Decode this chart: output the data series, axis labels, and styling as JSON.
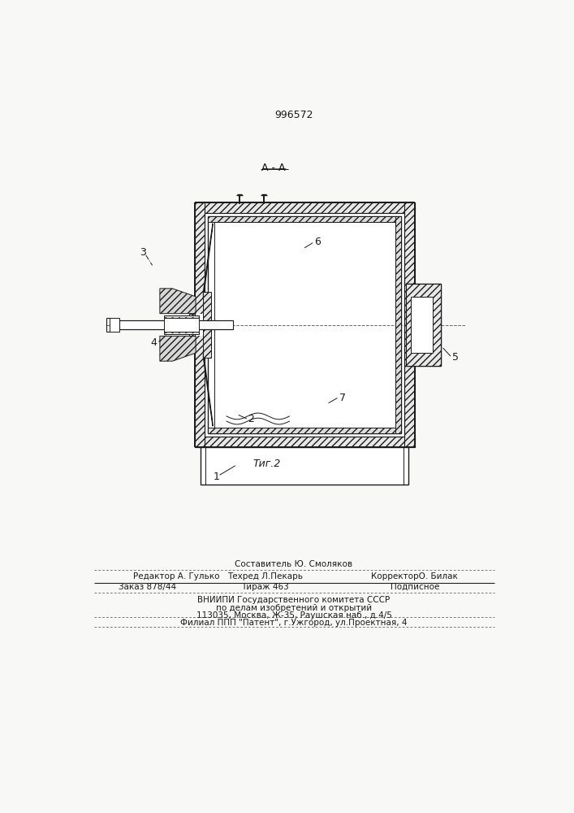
{
  "patent_number": "996572",
  "fig_label": "Τиг.2",
  "footer_sestavitel": "Составитель Ю. Смоляков",
  "footer_redaktor": "Редактор А. Гулько",
  "footer_tehred": "Техред Л.Пекарь",
  "footer_korrektor": "КорректорО. Билак",
  "footer_zakaz": "Заказ 878/44",
  "footer_tirazh": "Тираж 463",
  "footer_podpisnoe": "Подписное",
  "footer_vniip1": "ВНИИПИ Государственного комитета СССР",
  "footer_vniip2": "по делам изобретений и открытий",
  "footer_vniip3": "113035, Москва, Ж-35, Раушская наб., д.4/5",
  "footer_filial": "Филиал ППП \"Патент\", г.Ужгород, ул.Проектная, 4",
  "bg_color": "#f8f8f6",
  "line_color": "#1a1a1a",
  "hatch_color": "#555555"
}
